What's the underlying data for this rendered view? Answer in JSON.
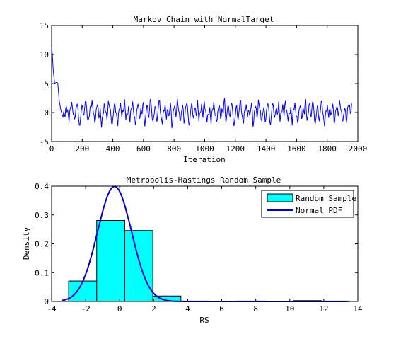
{
  "chart_data": [
    {
      "type": "line",
      "title": "Markov Chain with NormalTarget",
      "xlabel": "Iteration",
      "ylabel": "",
      "xlim": [
        0,
        2000
      ],
      "ylim": [
        -5,
        15
      ],
      "xticks": [
        "0",
        "200",
        "400",
        "600",
        "800",
        "1000",
        "1200",
        "1400",
        "1600",
        "1800",
        "2000"
      ],
      "yticks": [
        "-5",
        "0",
        "5",
        "10",
        "15"
      ],
      "grid": false,
      "series": [
        {
          "color": "#0000ff",
          "x_start": 0,
          "x_end": 1960,
          "burn_in": [
            [
              0,
              11.2
            ],
            [
              5,
              10.0
            ],
            [
              10,
              7.4
            ],
            [
              20,
              5.0
            ],
            [
              30,
              5.2
            ],
            [
              40,
              5.1
            ],
            [
              50,
              2.0
            ],
            [
              60,
              0.5
            ],
            [
              70,
              -0.5
            ]
          ],
          "stationary_range": [
            -3,
            2.5
          ],
          "values": [
            0.2,
            -0.8,
            1.1,
            0.4,
            -1.6,
            0.9,
            1.8,
            -0.3,
            -1.1,
            0.6,
            1.5,
            -0.9,
            -2.2,
            0.3,
            1.0,
            -0.4,
            1.9,
            0.7,
            -1.4,
            -0.6,
            1.2,
            2.1,
            -0.2,
            -1.8,
            0.5,
            1.4,
            -1.0,
            0.8,
            -2.6,
            -0.5,
            1.6,
            0.1,
            -1.2,
            2.0,
            0.9,
            -0.7,
            -1.9,
            0.4,
            1.3,
            -0.1,
            -2.3,
            0.6,
            1.7,
            -0.8,
            0.2,
            2.3,
            -1.3,
            -0.4,
            1.1,
            -1.7,
            0.8,
            1.9,
            -0.6,
            -2.1,
            0.3,
            1.5,
            -1.1,
            0.7,
            -0.3,
            1.8,
            -2.4,
            0.1,
            1.2,
            -0.9,
            2.2,
            0.5,
            -1.5,
            -0.2,
            1.0,
            -1.6,
            0.9,
            2.0,
            -0.7,
            -2.0,
            0.4,
            1.4,
            -1.2,
            0.6,
            -0.5,
            1.7,
            -2.7,
            0.2,
            1.1,
            -0.8,
            2.4,
            0.3,
            -1.4,
            -0.1,
            1.3,
            -1.9,
            0.7,
            1.6,
            -0.4,
            -2.2,
            0.5,
            1.2,
            -1.0,
            0.8,
            -0.6,
            2.1,
            -1.5,
            0.0,
            1.5,
            -0.9,
            1.9,
            0.4,
            -1.7,
            -0.3,
            0.9,
            -2.0,
            0.6,
            1.8,
            -0.5,
            -1.6,
            0.2,
            1.3,
            -1.1,
            0.7,
            -0.2,
            2.5,
            -1.8,
            0.3,
            1.0,
            -0.7,
            1.6,
            0.1,
            -2.3,
            -0.4,
            1.2,
            -1.3,
            0.8,
            2.0,
            -0.6,
            -1.9,
            0.5,
            1.4,
            -0.8,
            0.3,
            -0.1,
            1.7,
            -2.5,
            0.2,
            1.1,
            -1.0,
            2.2,
            0.6,
            -1.2,
            -0.5,
            0.9,
            -1.7,
            0.4,
            1.5,
            -0.3,
            -2.1,
            0.7,
            1.3,
            -0.9,
            0.5,
            -0.4,
            1.9,
            -1.6,
            0.1,
            1.4,
            -0.6,
            2.0,
            0.3,
            -1.5,
            -0.2,
            1.0,
            -2.2,
            0.6,
            1.7,
            -0.7,
            -1.8,
            0.4,
            1.2,
            -1.1,
            0.8,
            -0.3,
            2.3,
            -1.4,
            0.0,
            1.6,
            -0.8,
            1.8,
            0.5,
            -2.0,
            -0.1,
            1.1,
            -1.5,
            0.7,
            1.9,
            -0.5,
            -2.4,
            0.3,
            1.3,
            -0.9,
            0.6,
            -0.2,
            1.5,
            -1.9,
            0.2,
            1.0,
            -0.6,
            2.1,
            0.4,
            -1.3,
            -0.4,
            0.8,
            -1.8,
            0.9,
            1.4,
            -0.2,
            1.6
          ]
        }
      ]
    },
    {
      "type": "bar",
      "title": "Metropolis-Hastings Random Sample",
      "xlabel": "RS",
      "ylabel": "Density",
      "xlim": [
        -4,
        14
      ],
      "ylim": [
        0,
        0.4
      ],
      "xticks": [
        "-4",
        "-2",
        "0",
        "2",
        "4",
        "6",
        "8",
        "10",
        "12",
        "14"
      ],
      "yticks": [
        "0",
        "0.1",
        "0.2",
        "0.3",
        "0.4"
      ],
      "grid": false,
      "legend_position": "top-right",
      "legend": [
        {
          "label": "Random Sample",
          "swatch": "box",
          "color": "#00ffff"
        },
        {
          "label": "Normal PDF",
          "swatch": "line",
          "color": "#0000cc"
        }
      ],
      "histogram": {
        "color": "#00ffff",
        "edge": "#000000",
        "bins": [
          {
            "x0": -3.0,
            "x1": -1.35,
            "value": 0.071
          },
          {
            "x0": -1.35,
            "x1": 0.3,
            "value": 0.281
          },
          {
            "x0": 0.3,
            "x1": 1.95,
            "value": 0.246
          },
          {
            "x0": 1.95,
            "x1": 3.6,
            "value": 0.019
          },
          {
            "x0": 3.6,
            "x1": 5.25,
            "value": 0.0015
          },
          {
            "x0": 5.25,
            "x1": 6.9,
            "value": 0.001
          },
          {
            "x0": 6.9,
            "x1": 8.55,
            "value": 0.0015
          },
          {
            "x0": 8.55,
            "x1": 10.2,
            "value": 0.001
          },
          {
            "x0": 10.2,
            "x1": 11.85,
            "value": 0.003
          },
          {
            "x0": 11.85,
            "x1": 13.5,
            "value": 0.0015
          }
        ]
      },
      "pdf": {
        "color": "#0000cc",
        "mean": -0.3,
        "sd": 1.0,
        "x_from": -3.4,
        "x_to": 13.4
      }
    }
  ]
}
